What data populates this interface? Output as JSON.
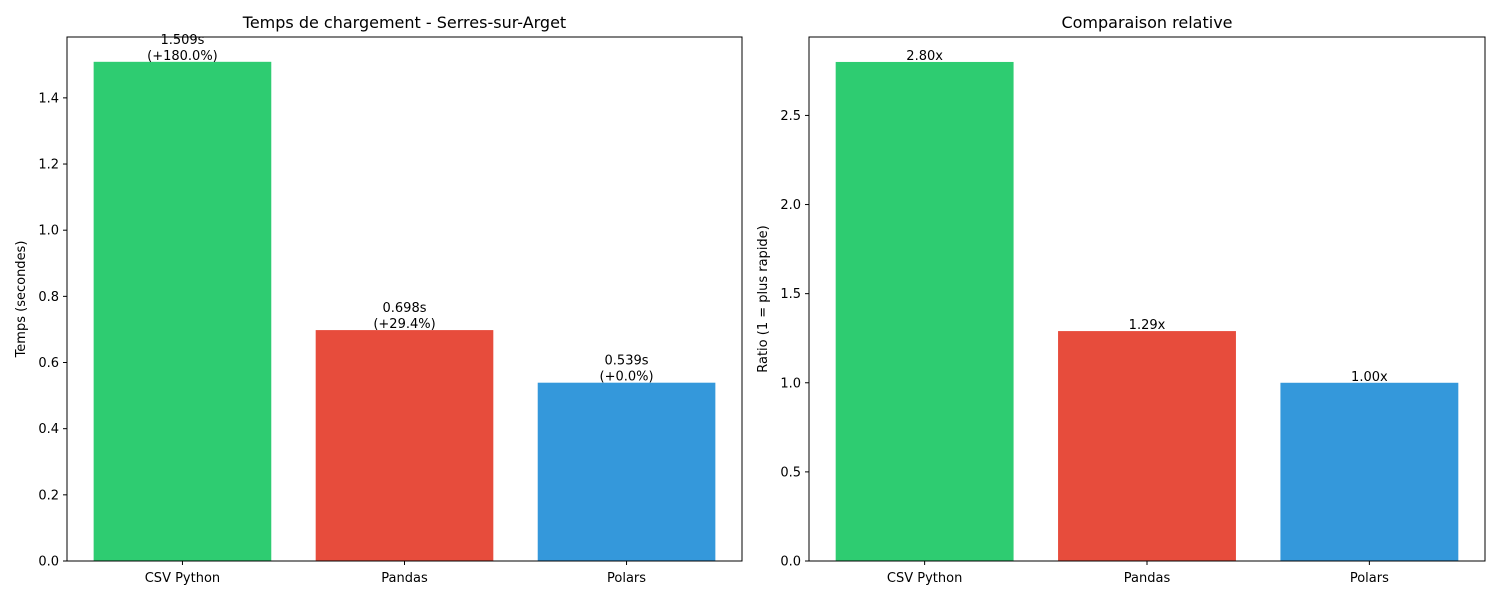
{
  "colors": {
    "csv_python": "#2ecc71",
    "pandas": "#e74c3c",
    "polars": "#3498db"
  },
  "chart_data": [
    {
      "type": "bar",
      "title": "Temps de chargement - Serres-sur-Arget",
      "xlabel": "",
      "ylabel": "Temps (secondes)",
      "categories": [
        "CSV Python",
        "Pandas",
        "Polars"
      ],
      "values": [
        1.509,
        0.698,
        0.539
      ],
      "bar_colors": [
        "#2ecc71",
        "#e74c3c",
        "#3498db"
      ],
      "data_labels": [
        [
          "1.509s",
          "(+180.0%)"
        ],
        [
          "0.698s",
          "(+29.4%)"
        ],
        [
          "0.539s",
          "(+0.0%)"
        ]
      ],
      "ylim": [
        0,
        1.584
      ],
      "yticks": [
        0.0,
        0.2,
        0.4,
        0.6,
        0.8,
        1.0,
        1.2,
        1.4
      ],
      "ytick_labels": [
        "0.0",
        "0.2",
        "0.4",
        "0.6",
        "0.8",
        "1.0",
        "1.2",
        "1.4"
      ],
      "grid": false,
      "legend": "none"
    },
    {
      "type": "bar",
      "title": "Comparaison relative",
      "xlabel": "",
      "ylabel": "Ratio (1 = plus rapide)",
      "categories": [
        "CSV Python",
        "Pandas",
        "Polars"
      ],
      "values": [
        2.8,
        1.29,
        1.0
      ],
      "bar_colors": [
        "#2ecc71",
        "#e74c3c",
        "#3498db"
      ],
      "data_labels": [
        [
          "2.80x"
        ],
        [
          "1.29x"
        ],
        [
          "1.00x"
        ]
      ],
      "ylim": [
        0,
        2.94
      ],
      "yticks": [
        0.0,
        0.5,
        1.0,
        1.5,
        2.0,
        2.5
      ],
      "ytick_labels": [
        "0.0",
        "0.5",
        "1.0",
        "1.5",
        "2.0",
        "2.5"
      ],
      "grid": false,
      "legend": "none"
    }
  ]
}
